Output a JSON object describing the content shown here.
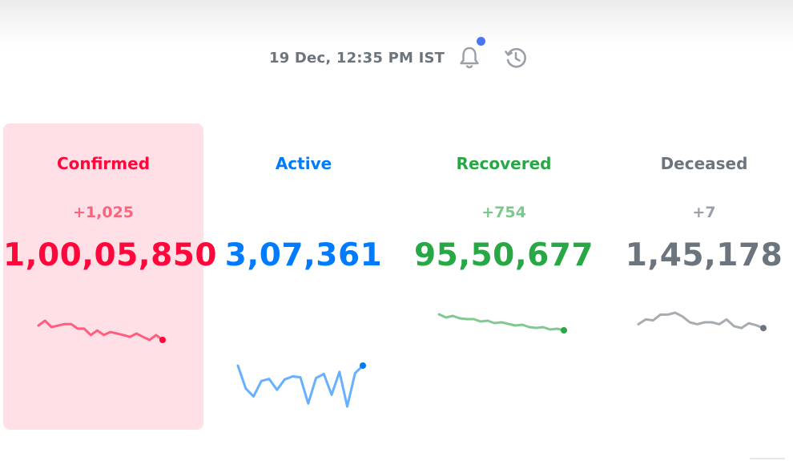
{
  "header": {
    "timestamp": "19 Dec, 12:35 PM IST",
    "bell_icon": "bell-icon",
    "history_icon": "history-icon",
    "notification_dot_color": "#4c75f2"
  },
  "cards": [
    {
      "key": "confirmed",
      "title": "Confirmed",
      "delta": "+1,025",
      "total": "1,00,05,850",
      "color": "#ff073a",
      "background": "#ffe0e6",
      "selected": true,
      "trend": [
        0.44,
        0.25,
        0.5,
        0.44,
        0.38,
        0.38,
        0.56,
        0.56,
        0.81,
        0.63,
        0.81,
        0.69,
        0.75,
        0.81,
        0.88,
        0.75,
        0.88,
        1.0,
        0.81,
        1.0
      ]
    },
    {
      "key": "active",
      "title": "Active",
      "delta": "",
      "total": "3,07,361",
      "color": "#007bff",
      "selected": false,
      "trend": [
        0.0,
        0.55,
        0.74,
        0.37,
        0.32,
        0.58,
        0.33,
        0.26,
        0.28,
        0.91,
        0.3,
        0.2,
        0.7,
        0.15,
        0.98,
        0.18,
        0.0
      ]
    },
    {
      "key": "recovered",
      "title": "Recovered",
      "delta": "+754",
      "total": "95,50,677",
      "color": "#28a745",
      "selected": false,
      "trend": [
        0.0,
        0.2,
        0.1,
        0.25,
        0.3,
        0.3,
        0.45,
        0.4,
        0.55,
        0.5,
        0.6,
        0.7,
        0.65,
        0.8,
        0.85,
        0.8,
        0.95,
        0.9,
        1.0
      ]
    },
    {
      "key": "deceased",
      "title": "Deceased",
      "delta": "+7",
      "total": "1,45,178",
      "color": "#6c757d",
      "selected": false,
      "trend": [
        0.6,
        0.35,
        0.4,
        0.1,
        0.1,
        0.0,
        0.2,
        0.5,
        0.6,
        0.5,
        0.5,
        0.6,
        0.35,
        0.7,
        0.8,
        0.55,
        0.65,
        0.8
      ]
    }
  ]
}
